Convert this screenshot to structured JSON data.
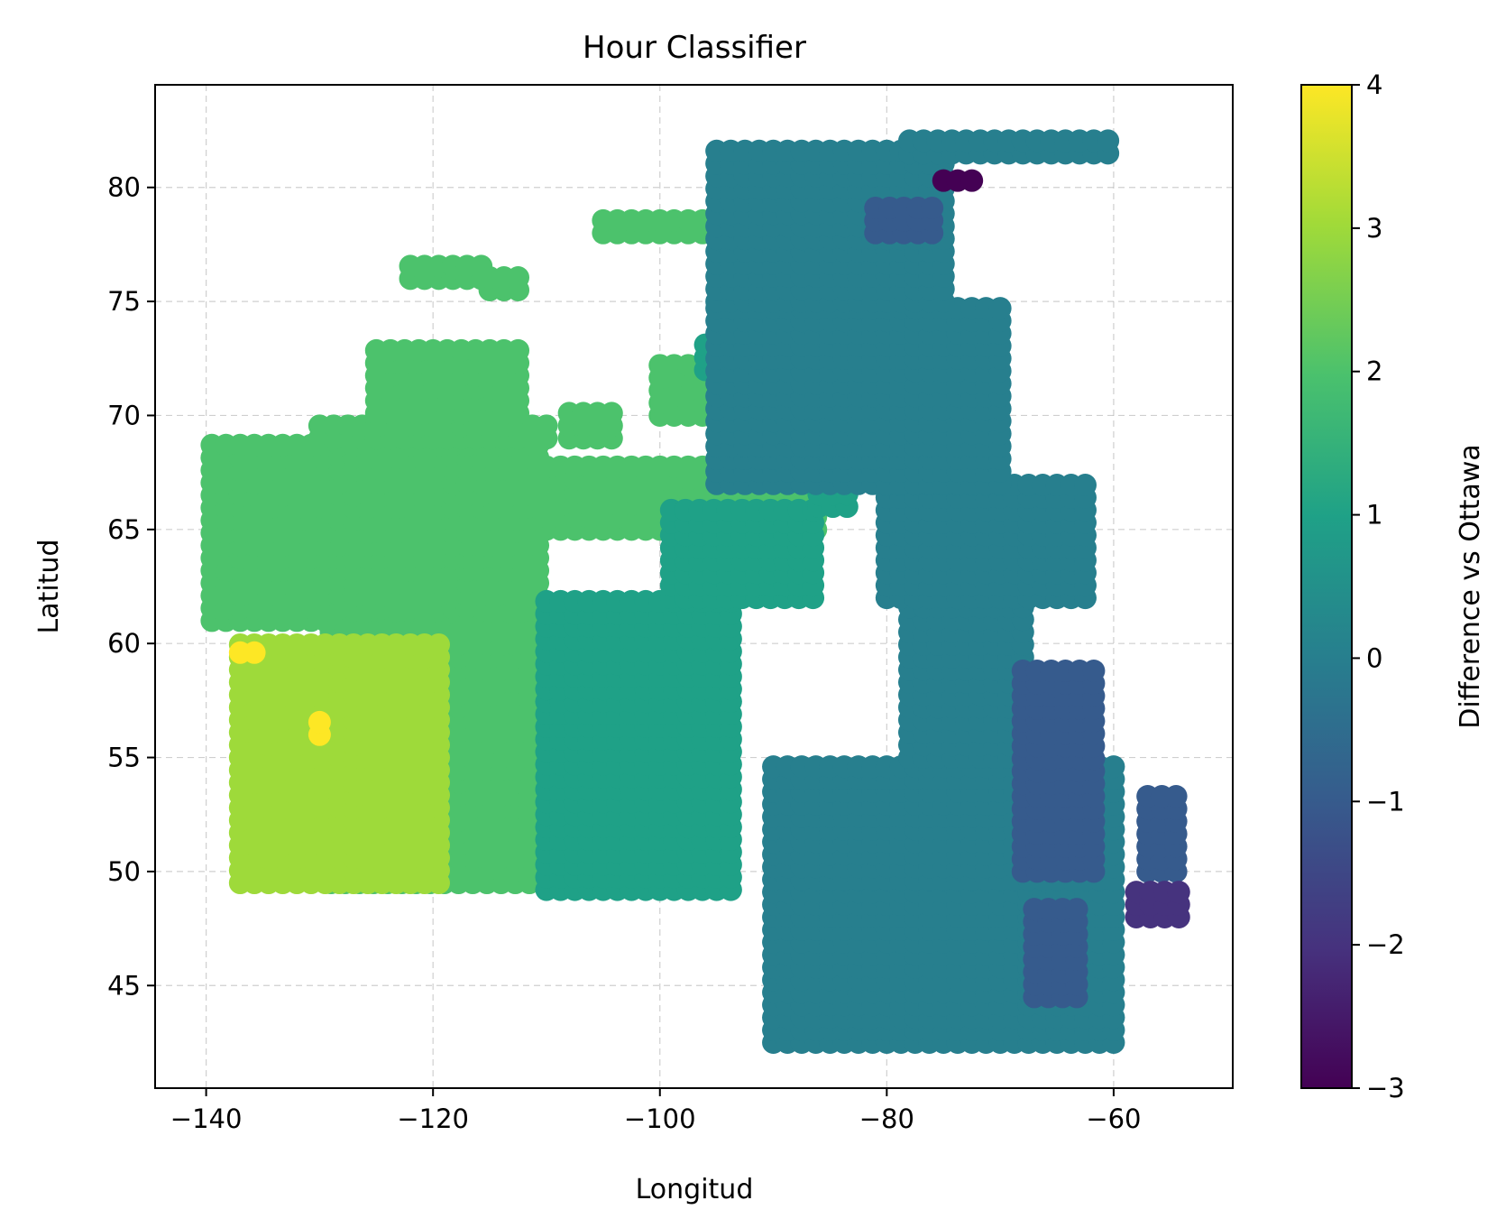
{
  "chart_data": {
    "type": "scatter",
    "title": "Hour Classifier",
    "xlabel": "Longitud",
    "ylabel": "Latitud",
    "xlim": [
      -144.5,
      -49.5
    ],
    "ylim": [
      40.5,
      84.5
    ],
    "xticks": [
      -140,
      -120,
      -100,
      -80,
      -60
    ],
    "yticks": [
      45,
      50,
      55,
      60,
      65,
      70,
      75,
      80
    ],
    "xtick_labels": [
      "−140",
      "−120",
      "−100",
      "−80",
      "−60"
    ],
    "ytick_labels": [
      "45",
      "50",
      "55",
      "60",
      "65",
      "70",
      "75",
      "80"
    ],
    "grid": true,
    "colormap": "viridis",
    "colorbar": {
      "label": "Difference vs Ottawa",
      "range": [
        -3,
        4
      ],
      "ticks": [
        4,
        3,
        2,
        1,
        0,
        -1,
        -2,
        -3
      ],
      "tick_labels": [
        "4",
        "3",
        "2",
        "1",
        "0",
        "−1",
        "−2",
        "−3"
      ]
    },
    "regions": [
      {
        "value": 2,
        "lon": [
          -139.5,
          -110
        ],
        "lat": [
          61,
          69
        ]
      },
      {
        "value": 2,
        "lon": [
          -130,
          -110
        ],
        "lat": [
          69,
          70
        ]
      },
      {
        "value": 2,
        "lon": [
          -125,
          -112
        ],
        "lat": [
          69,
          73
        ]
      },
      {
        "value": 2,
        "lon": [
          -110,
          -86
        ],
        "lat": [
          65,
          68
        ]
      },
      {
        "value": 2,
        "lon": [
          -108,
          -104
        ],
        "lat": [
          69,
          70.5
        ]
      },
      {
        "value": 2,
        "lon": [
          -100,
          -95
        ],
        "lat": [
          70,
          72.5
        ]
      },
      {
        "value": 2,
        "lon": [
          -122,
          -115
        ],
        "lat": [
          76,
          77
        ]
      },
      {
        "value": 2,
        "lon": [
          -115,
          -112
        ],
        "lat": [
          75.5,
          76.5
        ]
      },
      {
        "value": 2,
        "lon": [
          -105,
          -96
        ],
        "lat": [
          78,
          79
        ]
      },
      {
        "value": 2,
        "lon": [
          -129,
          -110
        ],
        "lat": [
          49.5,
          61
        ]
      },
      {
        "value": 3,
        "lon": [
          -137,
          -118.5
        ],
        "lat": [
          49.5,
          60
        ]
      },
      {
        "value": 3,
        "lon": [
          -132.5,
          -132.5
        ],
        "lat": [
          53.5,
          53.5
        ]
      },
      {
        "value": 4,
        "lon": [
          -137,
          -135
        ],
        "lat": [
          59.6,
          60
        ]
      },
      {
        "value": 4,
        "lon": [
          -130,
          -129
        ],
        "lat": [
          56,
          57
        ]
      },
      {
        "value": 1,
        "lon": [
          -110,
          -93
        ],
        "lat": [
          49.2,
          62
        ]
      },
      {
        "value": 1,
        "lon": [
          -99,
          -86
        ],
        "lat": [
          62,
          66
        ]
      },
      {
        "value": 1,
        "lon": [
          -96,
          -84
        ],
        "lat": [
          72,
          73.5
        ]
      },
      {
        "value": 1,
        "lon": [
          -86,
          -83
        ],
        "lat": [
          66,
          67
        ]
      },
      {
        "value": 0,
        "lon": [
          -90,
          -60
        ],
        "lat": [
          42.5,
          55
        ]
      },
      {
        "value": 0,
        "lon": [
          -78,
          -68
        ],
        "lat": [
          55,
          62
        ]
      },
      {
        "value": 0,
        "lon": [
          -80,
          -62
        ],
        "lat": [
          62,
          67
        ]
      },
      {
        "value": 0,
        "lon": [
          -95,
          -70
        ],
        "lat": [
          67,
          75
        ]
      },
      {
        "value": 0,
        "lon": [
          -95,
          -75
        ],
        "lat": [
          75,
          82
        ]
      },
      {
        "value": 0,
        "lon": [
          -78,
          -60
        ],
        "lat": [
          81.5,
          82.5
        ]
      },
      {
        "value": -1,
        "lon": [
          -68,
          -61
        ],
        "lat": [
          50,
          59
        ]
      },
      {
        "value": -1,
        "lon": [
          -67,
          -63
        ],
        "lat": [
          44.5,
          48.5
        ]
      },
      {
        "value": -1,
        "lon": [
          -81,
          -76
        ],
        "lat": [
          78,
          79.5
        ]
      },
      {
        "value": -1,
        "lon": [
          -57,
          -54
        ],
        "lat": [
          50,
          53.5
        ]
      },
      {
        "value": -2,
        "lon": [
          -58,
          -54
        ],
        "lat": [
          48,
          49.5
        ]
      },
      {
        "value": -3,
        "lon": [
          -75,
          -72
        ],
        "lat": [
          80.3,
          80.6
        ]
      }
    ]
  }
}
